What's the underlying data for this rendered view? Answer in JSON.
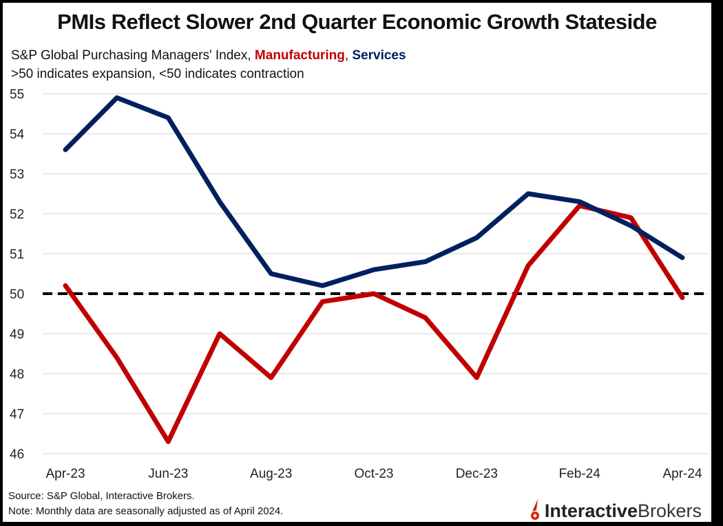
{
  "title": "PMIs Reflect Slower 2nd Quarter Economic Growth Stateside",
  "subtitle": {
    "prefix": "S&P Global Purchasing Managers' Index, ",
    "manufacturing": "Manufacturing",
    "sep": ", ",
    "services": "Services"
  },
  "note_line": ">50 indicates expansion, <50 indicates contraction",
  "footer": {
    "source": "Source: S&P Global, Interactive Brokers.",
    "note": "Note: Monthly data are seasonally adjusted as of April 2024."
  },
  "logo": {
    "bold": "Interactive",
    "regular": "Brokers",
    "icon": "ib-flame-icon"
  },
  "colors": {
    "manufacturing": "#c00000",
    "services": "#002060",
    "reference": "#000000",
    "grid": "#d9d9d9"
  },
  "chart_data": {
    "type": "line",
    "title": "PMIs Reflect Slower 2nd Quarter Economic Growth Stateside",
    "xlabel": "",
    "ylabel": "",
    "x": [
      "Apr-23",
      "May-23",
      "Jun-23",
      "Jul-23",
      "Aug-23",
      "Sep-23",
      "Oct-23",
      "Nov-23",
      "Dec-23",
      "Jan-24",
      "Feb-24",
      "Mar-24",
      "Apr-24"
    ],
    "x_tick_labels": [
      "Apr-23",
      "",
      "Jun-23",
      "",
      "Aug-23",
      "",
      "Oct-23",
      "",
      "Dec-23",
      "",
      "Feb-24",
      "",
      "Apr-24"
    ],
    "ylim": [
      46,
      55
    ],
    "yticks": [
      46,
      47,
      48,
      49,
      50,
      51,
      52,
      53,
      54,
      55
    ],
    "grid": true,
    "reference_line": {
      "y": 50,
      "style": "dashed"
    },
    "series": [
      {
        "name": "Services",
        "values": [
          53.6,
          54.9,
          54.4,
          52.3,
          50.5,
          50.2,
          50.6,
          50.8,
          51.4,
          52.5,
          52.3,
          51.7,
          50.9
        ]
      },
      {
        "name": "Manufacturing",
        "values": [
          50.2,
          48.4,
          46.3,
          49.0,
          47.9,
          49.8,
          50.0,
          49.4,
          47.9,
          50.7,
          52.2,
          51.9,
          49.9
        ]
      }
    ],
    "legend": "in-subtitle"
  }
}
